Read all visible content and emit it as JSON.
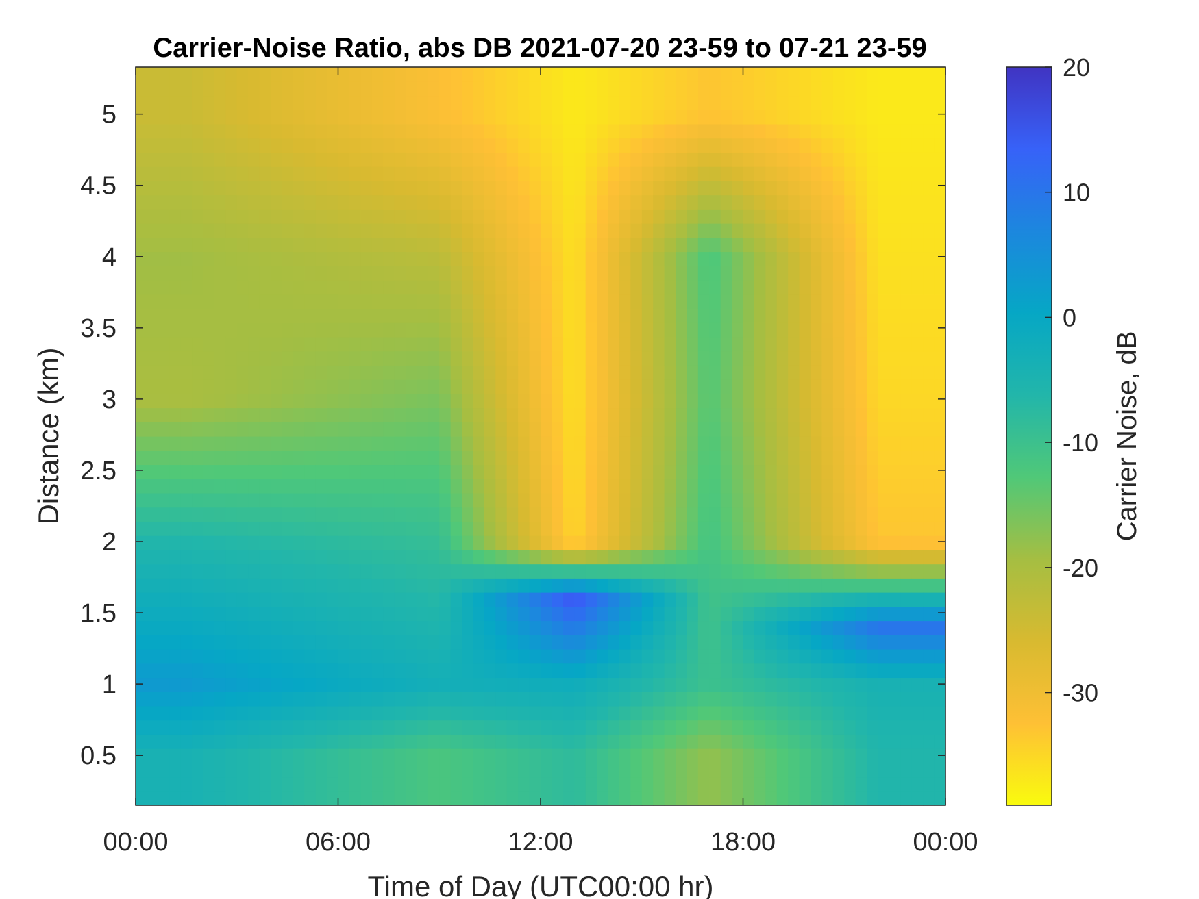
{
  "chart_data": {
    "type": "heatmap",
    "title": "Carrier-Noise Ratio, abs DB 2021-07-20 23-59 to 07-21 23-59",
    "xlabel": "Time of Day (UTC00:00 hr)",
    "ylabel": "Distance (km)",
    "x_unit": "hours",
    "xlim": [
      0,
      24
    ],
    "ylim": [
      0.15,
      5.33
    ],
    "x_ticks": [
      0,
      6,
      12,
      18,
      24
    ],
    "x_tick_labels": [
      "00:00",
      "06:00",
      "12:00",
      "18:00",
      "00:00"
    ],
    "y_ticks": [
      0.5,
      1,
      1.5,
      2,
      2.5,
      3,
      3.5,
      4,
      4.5,
      5
    ],
    "y_tick_labels": [
      "0.5",
      "1",
      "1.5",
      "2",
      "2.5",
      "3",
      "3.5",
      "4",
      "4.5",
      "5"
    ],
    "grid": false,
    "colorbar": {
      "label": "Carrier Noise, dB",
      "range": [
        -39,
        20
      ],
      "ticks": [
        20,
        10,
        0,
        -10,
        -20,
        -30
      ],
      "tick_labels": [
        "20",
        "10",
        "0",
        "-10",
        "-20",
        "-30"
      ],
      "colormap": "parula_reversed",
      "colors": [
        "#f9fb0e",
        "#fec035",
        "#d8ba30",
        "#a5be42",
        "#50c878",
        "#22b6aa",
        "#06a7c5",
        "#1c87de",
        "#3762f8",
        "#4034c2"
      ]
    },
    "profiles_approx": [
      {
        "time": 1.5,
        "cnr_by_distance": [
          {
            "distance": 0.5,
            "cnr": -4
          },
          {
            "distance": 1.0,
            "cnr": 3
          },
          {
            "distance": 2.0,
            "cnr": -6
          },
          {
            "distance": 3.0,
            "cnr": -20
          },
          {
            "distance": 4.0,
            "cnr": -19
          },
          {
            "distance": 5.0,
            "cnr": -24
          }
        ]
      },
      {
        "time": 9.0,
        "cnr_by_distance": [
          {
            "distance": 0.5,
            "cnr": -12
          },
          {
            "distance": 1.0,
            "cnr": -3
          },
          {
            "distance": 2.0,
            "cnr": -9
          },
          {
            "distance": 3.0,
            "cnr": -16
          },
          {
            "distance": 4.0,
            "cnr": -22
          },
          {
            "distance": 5.0,
            "cnr": -32
          }
        ]
      },
      {
        "time": 13.0,
        "cnr_by_distance": [
          {
            "distance": 0.5,
            "cnr": -8
          },
          {
            "distance": 1.0,
            "cnr": -2
          },
          {
            "distance": 1.6,
            "cnr": 15
          },
          {
            "distance": 2.0,
            "cnr": -35
          },
          {
            "distance": 3.0,
            "cnr": -36
          },
          {
            "distance": 4.0,
            "cnr": -36
          },
          {
            "distance": 5.0,
            "cnr": -37
          }
        ]
      },
      {
        "time": 17.0,
        "cnr_by_distance": [
          {
            "distance": 0.5,
            "cnr": -18
          },
          {
            "distance": 1.0,
            "cnr": -10
          },
          {
            "distance": 2.0,
            "cnr": -11
          },
          {
            "distance": 3.0,
            "cnr": -13
          },
          {
            "distance": 4.0,
            "cnr": -12
          },
          {
            "distance": 5.0,
            "cnr": -33
          }
        ]
      },
      {
        "time": 22.0,
        "cnr_by_distance": [
          {
            "distance": 0.5,
            "cnr": -6
          },
          {
            "distance": 1.0,
            "cnr": -4
          },
          {
            "distance": 1.4,
            "cnr": 10
          },
          {
            "distance": 2.0,
            "cnr": -33
          },
          {
            "distance": 3.0,
            "cnr": -35
          },
          {
            "distance": 4.0,
            "cnr": -36
          },
          {
            "distance": 5.0,
            "cnr": -37
          }
        ]
      }
    ]
  }
}
